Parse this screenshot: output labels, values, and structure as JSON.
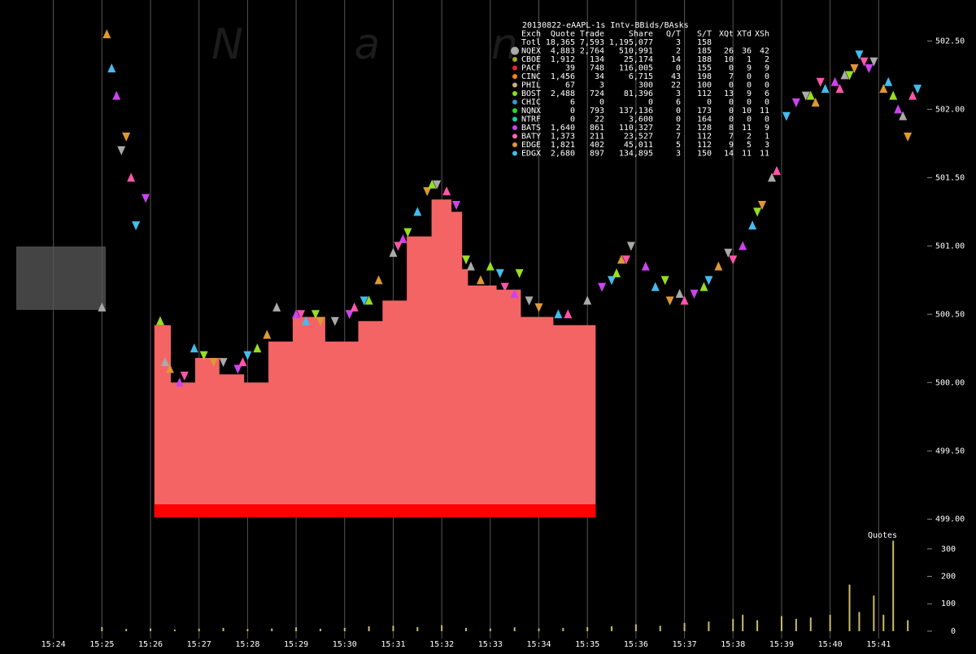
{
  "chart_data": {
    "type": "quotes",
    "watermark": "N a n",
    "xlim": [
      22.9,
      42.0
    ],
    "xticks": [
      {
        "value": 24,
        "label": "15:24"
      },
      {
        "value": 25,
        "label": "15:25"
      },
      {
        "value": 26,
        "label": "15:26"
      },
      {
        "value": 27,
        "label": "15:27"
      },
      {
        "value": 28,
        "label": "15:28"
      },
      {
        "value": 29,
        "label": "15:29"
      },
      {
        "value": 30,
        "label": "15:30"
      },
      {
        "value": 31,
        "label": "15:31"
      },
      {
        "value": 32,
        "label": "15:32"
      },
      {
        "value": 33,
        "label": "15:33"
      },
      {
        "value": 34,
        "label": "15:34"
      },
      {
        "value": 35,
        "label": "15:35"
      },
      {
        "value": 36,
        "label": "15:36"
      },
      {
        "value": 37,
        "label": "15:37"
      },
      {
        "value": 38,
        "label": "15:38"
      },
      {
        "value": 39,
        "label": "15:39"
      },
      {
        "value": 40,
        "label": "15:40"
      },
      {
        "value": 41,
        "label": "15:41"
      }
    ],
    "ylim": [
      498.93,
      502.8
    ],
    "yticks": [
      {
        "value": 499,
        "label": "499.00"
      },
      {
        "value": 499.5,
        "label": "499.50"
      },
      {
        "value": 500,
        "label": "500.00"
      },
      {
        "value": 500.5,
        "label": "500.50"
      },
      {
        "value": 501,
        "label": "501.00"
      },
      {
        "value": 501.5,
        "label": "501.50"
      },
      {
        "value": 502,
        "label": "502.00"
      },
      {
        "value": 502.5,
        "label": "502.50"
      }
    ],
    "bid_area": {
      "color": "#f46464",
      "x": [
        26.08,
        26.42,
        26.92,
        27.42,
        27.93,
        28.43,
        28.93,
        29.6,
        30.28,
        30.78,
        31.28,
        31.79,
        32.2,
        32.42,
        32.54,
        33.13,
        33.63,
        34.3,
        35.17
      ],
      "values": [
        500.42,
        500.0,
        500.18,
        500.06,
        500.0,
        500.3,
        500.48,
        500.3,
        500.45,
        500.6,
        501.07,
        501.34,
        501.25,
        500.83,
        500.71,
        500.68,
        500.48,
        500.42,
        500.42
      ]
    },
    "series": [
      {
        "color": "#aaaaaa",
        "x": [
          25.0,
          25.4,
          26.3,
          27.5,
          28.6,
          29.8,
          31.0,
          31.9,
          32.6,
          33.8,
          35.0,
          35.9,
          36.9,
          37.9,
          38.8,
          39.5,
          40.3,
          40.9,
          41.5
        ],
        "values": [
          500.55,
          501.7,
          500.15,
          500.15,
          500.55,
          500.45,
          500.95,
          501.45,
          500.85,
          500.6,
          500.6,
          501.0,
          500.65,
          500.95,
          501.5,
          502.1,
          502.25,
          502.35,
          501.95
        ]
      },
      {
        "color": "#44bbee",
        "x": [
          25.2,
          25.7,
          26.9,
          28.0,
          29.2,
          30.4,
          31.5,
          33.2,
          34.4,
          35.5,
          36.4,
          37.5,
          38.4,
          39.1,
          39.9,
          40.6,
          41.2,
          41.8
        ],
        "values": [
          502.3,
          501.15,
          500.25,
          500.2,
          500.45,
          500.6,
          501.25,
          500.8,
          500.5,
          500.75,
          500.7,
          500.75,
          501.15,
          501.95,
          502.15,
          502.4,
          502.2,
          502.15
        ]
      },
      {
        "color": "#cc44ee",
        "x": [
          25.3,
          25.9,
          26.6,
          27.8,
          29.0,
          30.1,
          31.2,
          32.3,
          33.5,
          35.3,
          36.2,
          37.2,
          38.2,
          39.3,
          40.1,
          40.8,
          41.4
        ],
        "values": [
          502.1,
          501.35,
          500.0,
          500.1,
          500.5,
          500.5,
          501.05,
          501.3,
          500.65,
          500.7,
          500.85,
          500.65,
          501.0,
          502.05,
          502.2,
          502.3,
          502.0
        ]
      },
      {
        "color": "#dd9933",
        "x": [
          25.1,
          25.5,
          26.4,
          27.3,
          28.4,
          29.5,
          30.7,
          31.7,
          32.8,
          34.0,
          35.7,
          36.7,
          37.7,
          38.6,
          39.7,
          40.5,
          41.1,
          41.6
        ],
        "values": [
          502.55,
          501.8,
          500.1,
          500.15,
          500.35,
          500.45,
          500.75,
          501.4,
          500.75,
          500.55,
          500.9,
          500.6,
          500.85,
          501.3,
          502.05,
          502.3,
          502.15,
          501.8
        ]
      },
      {
        "color": "#99dd22",
        "x": [
          26.2,
          27.1,
          28.2,
          29.4,
          30.5,
          31.3,
          31.8,
          32.5,
          33.0,
          33.6,
          35.6,
          36.6,
          37.4,
          38.5,
          39.6,
          40.4,
          41.3
        ],
        "values": [
          500.45,
          500.2,
          500.25,
          500.5,
          500.6,
          501.1,
          501.45,
          500.9,
          500.85,
          500.8,
          500.8,
          500.75,
          500.7,
          501.25,
          502.1,
          502.25,
          502.1
        ]
      },
      {
        "color": "#ff55aa",
        "x": [
          25.6,
          26.7,
          27.9,
          29.1,
          30.2,
          31.1,
          32.1,
          33.3,
          34.6,
          35.8,
          37.0,
          38.0,
          38.9,
          39.8,
          40.2,
          40.7,
          41.7
        ],
        "values": [
          501.5,
          500.05,
          500.15,
          500.5,
          500.55,
          501.0,
          501.4,
          500.7,
          500.5,
          500.9,
          500.6,
          500.9,
          501.55,
          502.2,
          502.15,
          502.35,
          502.1
        ]
      }
    ],
    "volume": {
      "label": "Quotes",
      "color": "#ccbb66",
      "x": [
        25.0,
        25.5,
        26.0,
        26.5,
        27.0,
        27.5,
        28.0,
        28.5,
        29.0,
        29.5,
        30.0,
        30.5,
        31.0,
        31.5,
        32.0,
        32.5,
        33.0,
        33.5,
        34.0,
        34.5,
        35.0,
        35.5,
        36.0,
        36.5,
        37.0,
        37.5,
        38.0,
        38.2,
        38.5,
        39.0,
        39.3,
        39.6,
        40.0,
        40.4,
        40.6,
        40.9,
        41.1,
        41.3,
        41.6
      ],
      "values": [
        15,
        8,
        10,
        6,
        9,
        12,
        8,
        10,
        14,
        9,
        12,
        18,
        20,
        15,
        22,
        12,
        10,
        14,
        10,
        12,
        15,
        18,
        25,
        20,
        30,
        35,
        45,
        60,
        40,
        55,
        45,
        50,
        60,
        170,
        70,
        130,
        60,
        330,
        40
      ]
    },
    "y2lim": [
      -12,
      344
    ],
    "y2ticks": [
      0,
      100,
      200,
      300
    ],
    "legend_table": {
      "title": "20130822-eAAPL-1s Intv-BBids/BAsks",
      "header": [
        "Exch",
        "Quote",
        "Trade",
        "Share",
        "Q/T",
        "S/T",
        "XQt",
        "XTd",
        "XSh"
      ],
      "rows": [
        {
          "cells": [
            "Totl",
            "18,365",
            "7,593",
            "1,195,077",
            "3",
            "158"
          ]
        },
        {
          "color": "#aaaaaa",
          "cells": [
            "NQEX",
            "4,883",
            "2,764",
            "510,991",
            "2",
            "185",
            "26",
            "36",
            "42"
          ]
        },
        {
          "color": "#aaaa22",
          "cells": [
            "CBOE",
            "1,912",
            "134",
            "25,174",
            "14",
            "188",
            "10",
            "1",
            "2"
          ]
        },
        {
          "color": "#ee2222",
          "cells": [
            "PACF",
            "39",
            "748",
            "116,005",
            "0",
            "155",
            "0",
            "9",
            "9"
          ]
        },
        {
          "color": "#ff8800",
          "cells": [
            "CINC",
            "1,456",
            "34",
            "6,715",
            "43",
            "198",
            "7",
            "0",
            "0"
          ]
        },
        {
          "color": "#ccaa77",
          "cells": [
            "PHIL",
            "67",
            "3",
            "300",
            "22",
            "100",
            "0",
            "0",
            "0"
          ]
        },
        {
          "color": "#88dd22",
          "cells": [
            "BOST",
            "2,488",
            "724",
            "81,396",
            "3",
            "112",
            "13",
            "9",
            "6"
          ]
        },
        {
          "color": "#3399cc",
          "cells": [
            "CHIC",
            "6",
            "0",
            "0",
            "6",
            "0",
            "0",
            "0",
            "0"
          ]
        },
        {
          "color": "#22dd22",
          "cells": [
            "NQNX",
            "0",
            "793",
            "137,136",
            "0",
            "173",
            "0",
            "10",
            "11"
          ]
        },
        {
          "color": "#22ccaa",
          "cells": [
            "NTRF",
            "0",
            "22",
            "3,600",
            "0",
            "164",
            "0",
            "0",
            "0"
          ]
        },
        {
          "color": "#cc44ee",
          "cells": [
            "BATS",
            "1,640",
            "861",
            "110,327",
            "2",
            "128",
            "8",
            "11",
            "9"
          ]
        },
        {
          "color": "#ff66aa",
          "cells": [
            "BATY",
            "1,373",
            "211",
            "23,527",
            "7",
            "112",
            "7",
            "2",
            "1"
          ]
        },
        {
          "color": "#dd9933",
          "cells": [
            "EDGE",
            "1,821",
            "402",
            "45,011",
            "5",
            "112",
            "9",
            "5",
            "3"
          ]
        },
        {
          "color": "#44bbee",
          "cells": [
            "EDGX",
            "2,680",
            "897",
            "134,895",
            "3",
            "150",
            "14",
            "11",
            "11"
          ]
        }
      ]
    }
  }
}
